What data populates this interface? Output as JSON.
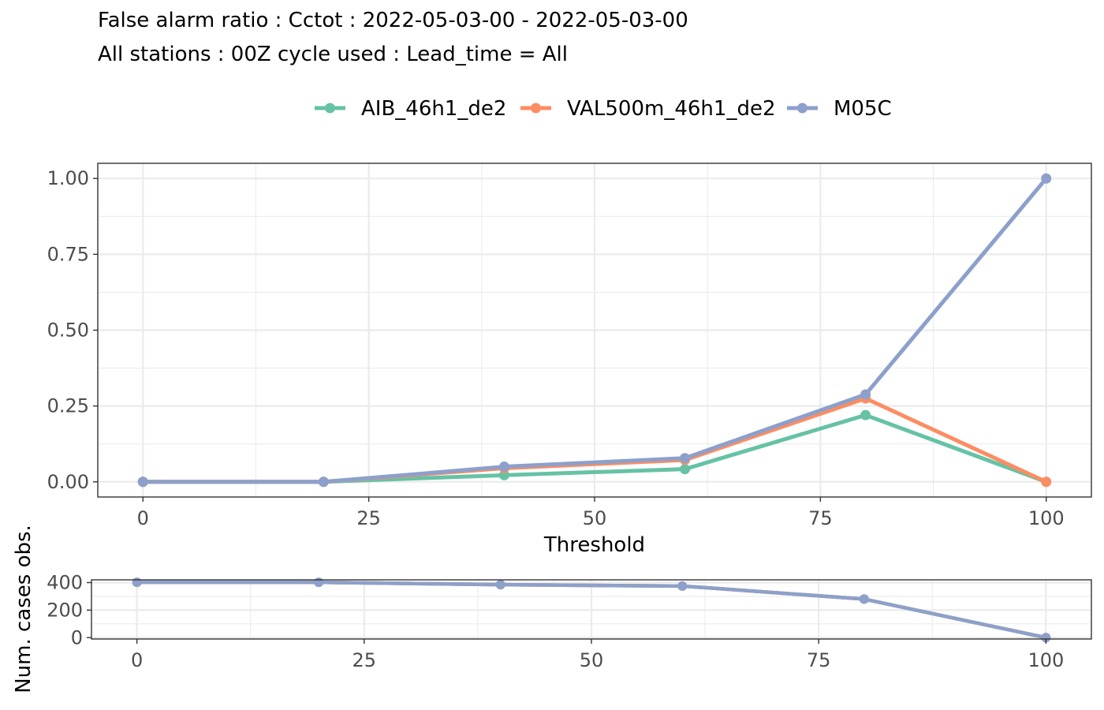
{
  "title": "False alarm ratio : Cctot : 2022-05-03-00 - 2022-05-03-00",
  "subtitle": "All stations : 00Z cycle used : Lead_time = All",
  "colors": {
    "AIB_46h1_de2": "#66c2a5",
    "VAL500m_46h1_de2": "#fc8d62",
    "M05C": "#8da0cb"
  },
  "chart_data": [
    {
      "type": "line",
      "title": "False alarm ratio : Cctot : 2022-05-03-00 - 2022-05-03-00",
      "subtitle": "All stations : 00Z cycle used : Lead_time = All",
      "xlabel": "Threshold",
      "ylabel": "",
      "xlim": [
        -5,
        105
      ],
      "ylim": [
        -0.05,
        1.05
      ],
      "x_ticks": [
        0,
        25,
        50,
        75,
        100
      ],
      "y_ticks": [
        0.0,
        0.25,
        0.5,
        0.75,
        1.0
      ],
      "x_tick_labels": [
        "0",
        "25",
        "50",
        "75",
        "100"
      ],
      "y_tick_labels": [
        "0.00",
        "0.25",
        "0.50",
        "0.75",
        "1.00"
      ],
      "grid": true,
      "legend": "top",
      "x": [
        0,
        20,
        40,
        60,
        80,
        100
      ],
      "series": [
        {
          "name": "AIB_46h1_de2",
          "values": [
            0.0,
            0.0,
            0.022,
            0.042,
            0.22,
            0.0
          ]
        },
        {
          "name": "VAL500m_46h1_de2",
          "values": [
            0.0,
            0.0,
            0.045,
            0.072,
            0.275,
            0.0
          ]
        },
        {
          "name": "M05C",
          "values": [
            0.0,
            0.0,
            0.05,
            0.078,
            0.288,
            1.0
          ]
        }
      ]
    },
    {
      "type": "line",
      "title": "",
      "xlabel": "",
      "ylabel": "Num. cases obs.",
      "xlim": [
        -5,
        105
      ],
      "ylim": [
        -10,
        420
      ],
      "x_ticks": [
        0,
        25,
        50,
        75,
        100
      ],
      "y_ticks": [
        0,
        200,
        400
      ],
      "x_tick_labels": [
        "0",
        "25",
        "50",
        "75",
        "100"
      ],
      "y_tick_labels": [
        "0",
        "200",
        "400"
      ],
      "grid": true,
      "x": [
        0,
        20,
        40,
        60,
        80,
        100
      ],
      "series": [
        {
          "name": "AIB_46h1_de2",
          "values": [
            402,
            402,
            385,
            375,
            280,
            0
          ]
        },
        {
          "name": "VAL500m_46h1_de2",
          "values": [
            402,
            402,
            385,
            375,
            280,
            0
          ]
        },
        {
          "name": "M05C",
          "values": [
            402,
            402,
            385,
            375,
            280,
            0
          ]
        }
      ]
    }
  ]
}
